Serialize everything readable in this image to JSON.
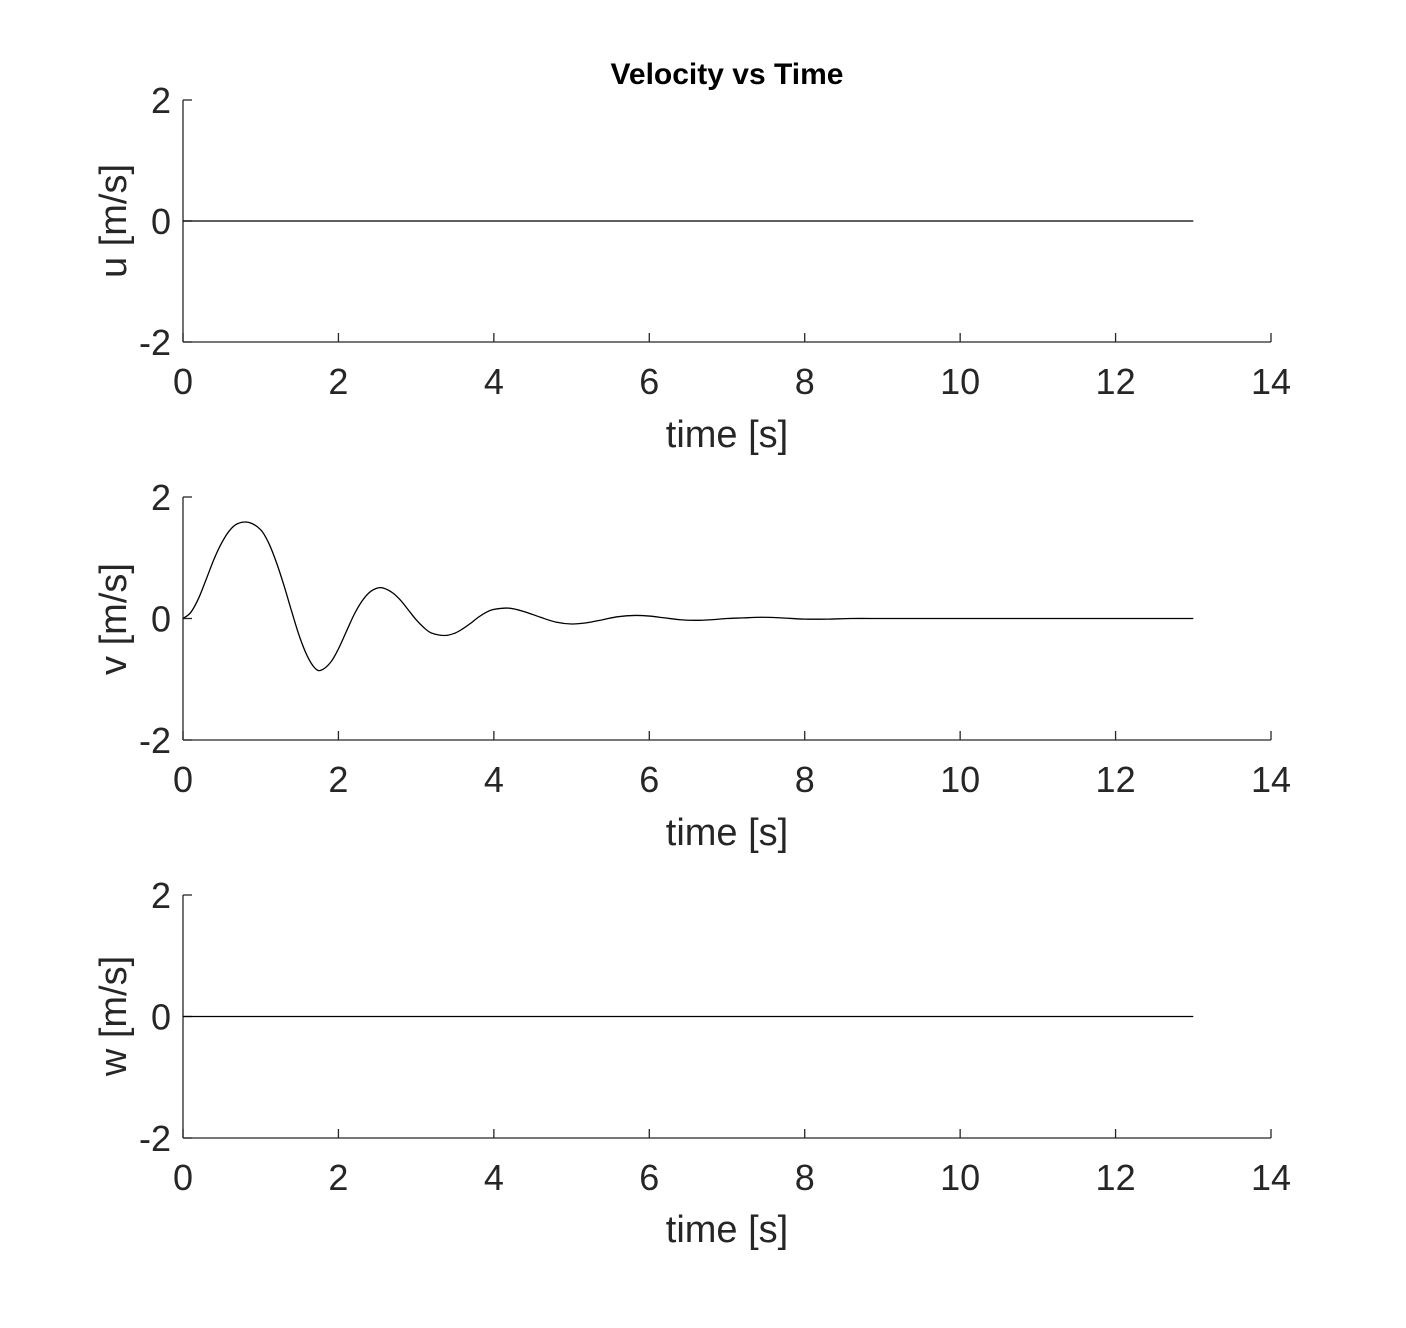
{
  "chart_data": [
    {
      "type": "line",
      "title": "Velocity vs Time",
      "xlabel": "time [s]",
      "ylabel": "u [m/s]",
      "xlim": [
        0,
        14
      ],
      "ylim": [
        -2,
        2
      ],
      "xticks": [
        "0",
        "2",
        "4",
        "6",
        "8",
        "10",
        "12",
        "14"
      ],
      "yticks": [
        "-2",
        "0",
        "2"
      ],
      "grid": false,
      "line_color": "#000000",
      "series": [
        {
          "x": [
            0,
            1,
            2,
            3,
            4,
            5,
            6,
            7,
            8,
            9,
            10,
            11,
            12,
            13
          ],
          "y": [
            0,
            0,
            0,
            0,
            0,
            0,
            0,
            0,
            0,
            0,
            0,
            0,
            0,
            0
          ]
        }
      ]
    },
    {
      "type": "line",
      "title": "",
      "xlabel": "time [s]",
      "ylabel": "v [m/s]",
      "xlim": [
        0,
        14
      ],
      "ylim": [
        -2,
        2
      ],
      "xticks": [
        "0",
        "2",
        "4",
        "6",
        "8",
        "10",
        "12",
        "14"
      ],
      "yticks": [
        "-2",
        "0",
        "2"
      ],
      "grid": false,
      "line_color": "#000000",
      "series": [
        {
          "x": [
            0,
            0.1,
            0.2,
            0.3,
            0.4,
            0.5,
            0.6,
            0.7,
            0.85,
            1.0,
            1.1,
            1.2,
            1.3,
            1.4,
            1.5,
            1.6,
            1.7,
            1.78,
            1.9,
            2.0,
            2.1,
            2.2,
            2.3,
            2.4,
            2.5,
            2.58,
            2.7,
            2.8,
            2.9,
            3.0,
            3.1,
            3.2,
            3.37,
            3.5,
            3.6,
            3.7,
            3.8,
            3.9,
            4.0,
            4.2,
            4.4,
            4.6,
            4.8,
            5.0,
            5.2,
            5.4,
            5.6,
            5.82,
            6.0,
            6.2,
            6.4,
            6.6,
            6.8,
            7.0,
            7.2,
            7.44,
            7.7,
            8.0,
            8.3,
            8.6,
            9.0,
            9.5,
            10.0,
            10.5,
            11.0,
            11.5,
            12.0,
            12.5,
            13.0
          ],
          "y": [
            0,
            0.1,
            0.33,
            0.65,
            0.98,
            1.25,
            1.45,
            1.56,
            1.58,
            1.46,
            1.25,
            0.93,
            0.54,
            0.11,
            -0.3,
            -0.62,
            -0.82,
            -0.85,
            -0.72,
            -0.5,
            -0.22,
            0.06,
            0.28,
            0.43,
            0.5,
            0.5,
            0.42,
            0.3,
            0.14,
            -0.02,
            -0.15,
            -0.24,
            -0.28,
            -0.24,
            -0.17,
            -0.08,
            0.02,
            0.1,
            0.15,
            0.17,
            0.11,
            0.02,
            -0.06,
            -0.09,
            -0.07,
            -0.02,
            0.03,
            0.05,
            0.04,
            0.01,
            -0.02,
            -0.03,
            -0.02,
            0.0,
            0.01,
            0.02,
            0.01,
            -0.01,
            -0.01,
            0.0,
            0.0,
            0.0,
            0.0,
            0.0,
            0.0,
            0.0,
            0.0,
            0.0,
            0.0
          ]
        }
      ]
    },
    {
      "type": "line",
      "title": "",
      "xlabel": "time [s]",
      "ylabel": "w [m/s]",
      "xlim": [
        0,
        14
      ],
      "ylim": [
        -2,
        2
      ],
      "xticks": [
        "0",
        "2",
        "4",
        "6",
        "8",
        "10",
        "12",
        "14"
      ],
      "yticks": [
        "-2",
        "0",
        "2"
      ],
      "grid": false,
      "line_color": "#000000",
      "series": [
        {
          "x": [
            0,
            1,
            2,
            3,
            4,
            5,
            6,
            7,
            8,
            9,
            10,
            11,
            12,
            13
          ],
          "y": [
            0,
            0,
            0,
            0,
            0,
            0,
            0,
            0,
            0,
            0,
            0,
            0,
            0,
            0
          ]
        }
      ]
    }
  ]
}
